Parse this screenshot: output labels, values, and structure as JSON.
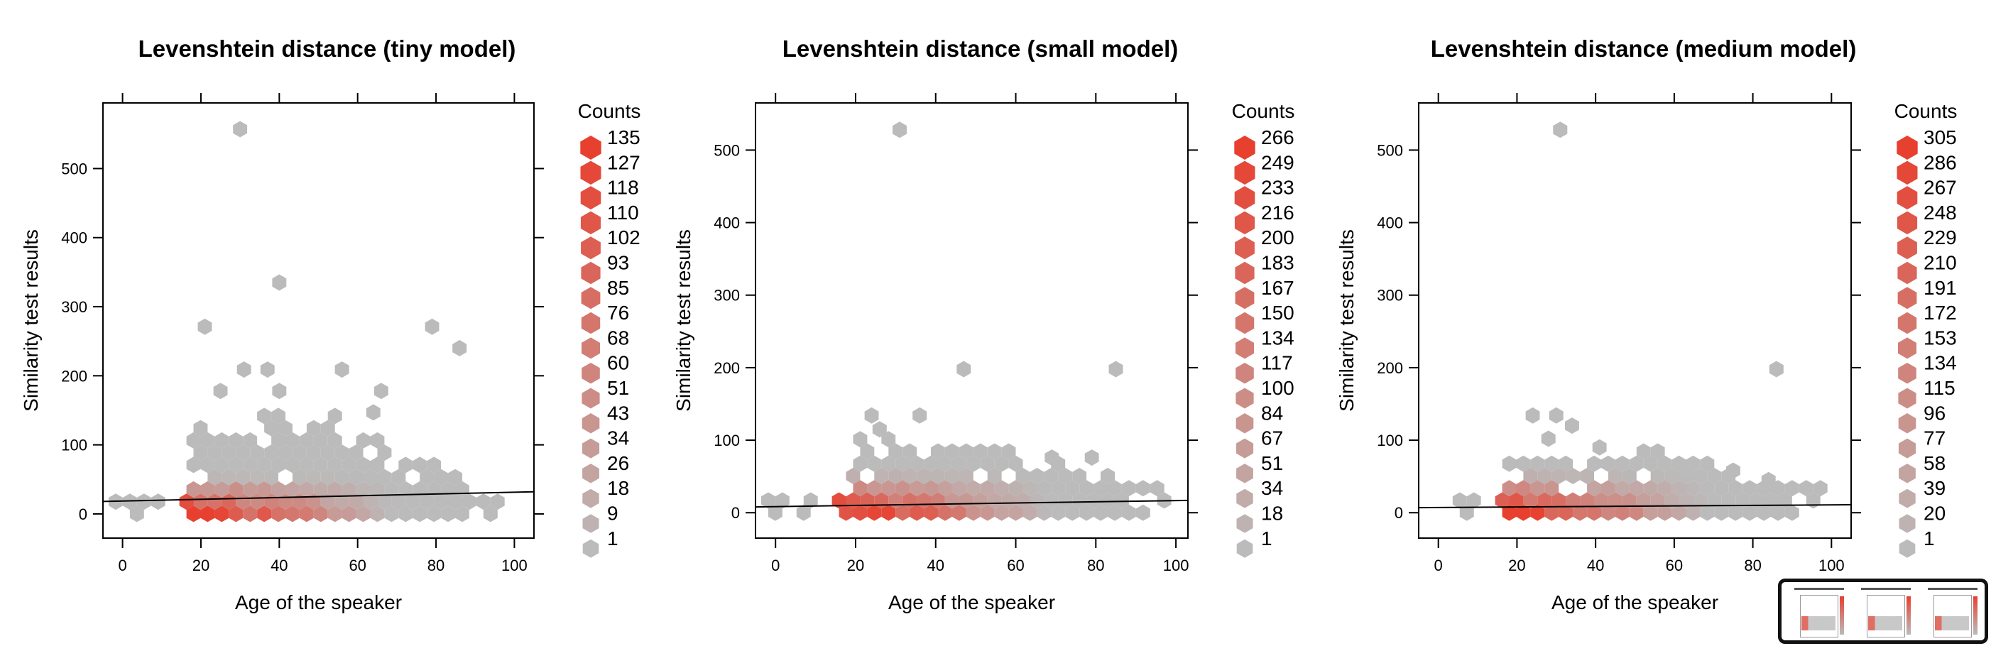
{
  "chart_data": [
    {
      "type": "hexbin",
      "title": "Levenshtein distance (tiny model)",
      "xlabel": "Age of the speaker",
      "ylabel": "Similarity test results",
      "xlim": [
        -5,
        105
      ],
      "ylim": [
        -35,
        595
      ],
      "xticks": [
        0,
        20,
        40,
        60,
        80,
        100
      ],
      "yticks": [
        0,
        100,
        200,
        300,
        400,
        500
      ],
      "legend_title": "Counts",
      "legend_values": [
        "135",
        "127",
        "118",
        "110",
        "102",
        "93",
        "85",
        "76",
        "68",
        "60",
        "51",
        "43",
        "34",
        "26",
        "18",
        "9",
        "1"
      ],
      "max_count": 135,
      "regression": {
        "x": [
          -5,
          105
        ],
        "y": [
          18,
          32
        ]
      },
      "outliers": [
        [
          30,
          557
        ],
        [
          40,
          335
        ],
        [
          21,
          271
        ],
        [
          79,
          271
        ],
        [
          86,
          240
        ],
        [
          31,
          209
        ],
        [
          37,
          209
        ],
        [
          56,
          209
        ],
        [
          40,
          178
        ],
        [
          66,
          178
        ],
        [
          25,
          178
        ],
        [
          64,
          147
        ]
      ]
    },
    {
      "type": "hexbin",
      "title": "Levenshtein distance (small model)",
      "xlabel": "Age of the speaker",
      "ylabel": "Similarity test results",
      "xlim": [
        -5,
        103
      ],
      "ylim": [
        -35,
        565
      ],
      "xticks": [
        0,
        20,
        40,
        60,
        80,
        100
      ],
      "yticks": [
        0,
        100,
        200,
        300,
        400,
        500
      ],
      "legend_title": "Counts",
      "legend_values": [
        "266",
        "249",
        "233",
        "216",
        "200",
        "183",
        "167",
        "150",
        "134",
        "117",
        "100",
        "84",
        "67",
        "51",
        "34",
        "18",
        "1"
      ],
      "max_count": 266,
      "regression": {
        "x": [
          -5,
          103
        ],
        "y": [
          8,
          17
        ]
      },
      "outliers": [
        [
          31,
          528
        ],
        [
          47,
          198
        ],
        [
          85,
          198
        ],
        [
          24,
          134
        ],
        [
          36,
          134
        ],
        [
          26,
          115
        ],
        [
          69,
          76
        ],
        [
          79,
          76
        ]
      ]
    },
    {
      "type": "hexbin",
      "title": "Levenshtein distance (medium model)",
      "xlabel": "Age of the speaker",
      "ylabel": "Similarity test results",
      "xlim": [
        -5,
        105
      ],
      "ylim": [
        -35,
        565
      ],
      "xticks": [
        0,
        20,
        40,
        60,
        80,
        100
      ],
      "yticks": [
        0,
        100,
        200,
        300,
        400,
        500
      ],
      "legend_title": "Counts",
      "legend_values": [
        "305",
        "286",
        "267",
        "248",
        "229",
        "210",
        "191",
        "172",
        "153",
        "134",
        "115",
        "96",
        "77",
        "58",
        "39",
        "20",
        "1"
      ],
      "max_count": 305,
      "regression": {
        "x": [
          -5,
          105
        ],
        "y": [
          7,
          11
        ]
      },
      "outliers": [
        [
          31,
          528
        ],
        [
          86,
          198
        ],
        [
          24,
          134
        ],
        [
          30,
          134
        ],
        [
          34,
          120
        ],
        [
          28,
          102
        ],
        [
          41,
          90
        ],
        [
          63,
          58
        ],
        [
          75,
          58
        ],
        [
          84,
          45
        ]
      ]
    }
  ]
}
